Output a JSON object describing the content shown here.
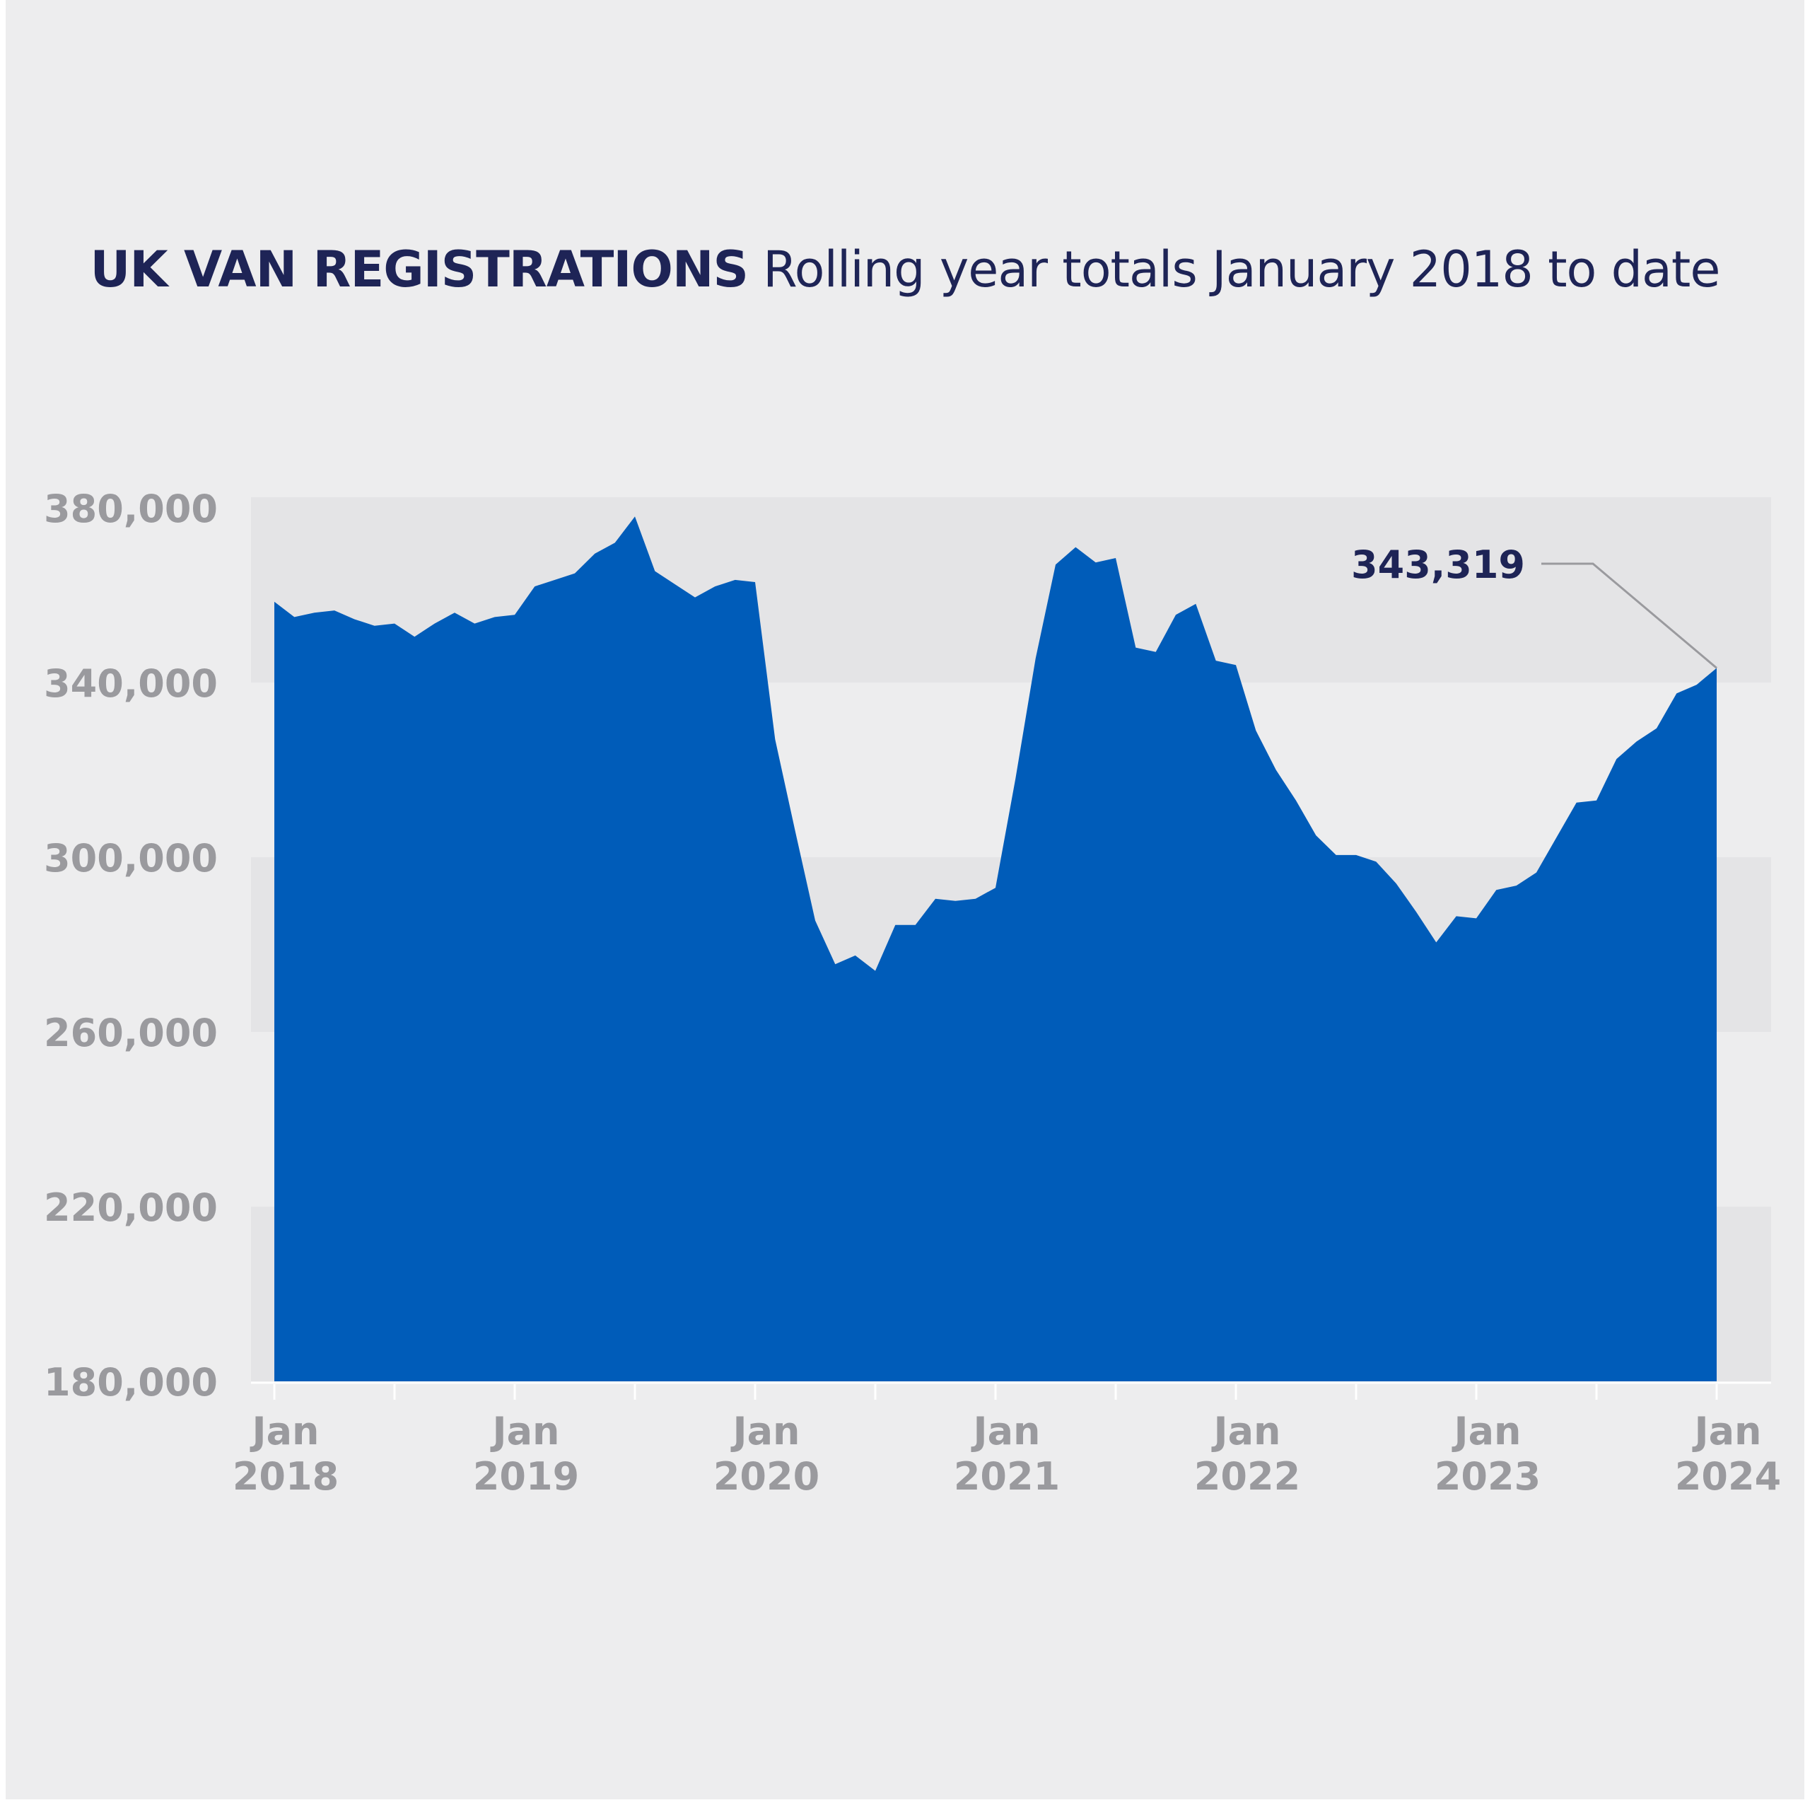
{
  "title": {
    "bold": "UK VAN REGISTRATIONS",
    "light": "Rolling year totals January 2018 to date"
  },
  "colors": {
    "background": "#ededee",
    "band": "#e4e4e6",
    "area": "#005cb9",
    "text_dark": "#1e2456",
    "axis_text": "#9a9a9e"
  },
  "chart_data": {
    "type": "area",
    "title": "UK VAN REGISTRATIONS Rolling year totals January 2018 to date",
    "xlabel": "",
    "ylabel": "",
    "ylim": [
      180000,
      380000
    ],
    "yticks": [
      {
        "value": 380000,
        "label": "380,000"
      },
      {
        "value": 340000,
        "label": "340,000"
      },
      {
        "value": 300000,
        "label": "300,000"
      },
      {
        "value": 260000,
        "label": "260,000"
      },
      {
        "value": 220000,
        "label": "220,000"
      },
      {
        "value": 180000,
        "label": "180,000"
      }
    ],
    "xticks": [
      {
        "label_top": "Jan",
        "label_bottom": "2018"
      },
      {
        "label_top": "Jan",
        "label_bottom": "2019"
      },
      {
        "label_top": "Jan",
        "label_bottom": "2020"
      },
      {
        "label_top": "Jan",
        "label_bottom": "2021"
      },
      {
        "label_top": "Jan",
        "label_bottom": "2022"
      },
      {
        "label_top": "Jan",
        "label_bottom": "2023"
      },
      {
        "label_top": "Jan",
        "label_bottom": "2024"
      }
    ],
    "grid": "alternating horizontal bands",
    "legend": "none",
    "series": [
      {
        "x": [
          "2018-01",
          "2018-02",
          "2018-03",
          "2018-04",
          "2018-05",
          "2018-06",
          "2018-07",
          "2018-08",
          "2018-09",
          "2018-10",
          "2018-11",
          "2018-12",
          "2019-01",
          "2019-02",
          "2019-03",
          "2019-04",
          "2019-05",
          "2019-06",
          "2019-07",
          "2019-08",
          "2019-09",
          "2019-10",
          "2019-11",
          "2019-12",
          "2020-01",
          "2020-02",
          "2020-03",
          "2020-04",
          "2020-05",
          "2020-06",
          "2020-07",
          "2020-08",
          "2020-09",
          "2020-10",
          "2020-11",
          "2020-12",
          "2021-01",
          "2021-02",
          "2021-03",
          "2021-04",
          "2021-05",
          "2021-06",
          "2021-07",
          "2021-08",
          "2021-09",
          "2021-10",
          "2021-11",
          "2021-12",
          "2022-01",
          "2022-02",
          "2022-03",
          "2022-04",
          "2022-05",
          "2022-06",
          "2022-07",
          "2022-08",
          "2022-09",
          "2022-10",
          "2022-11",
          "2022-12",
          "2023-01",
          "2023-02",
          "2023-03",
          "2023-04",
          "2023-05",
          "2023-06",
          "2023-07",
          "2023-08",
          "2023-09",
          "2023-10",
          "2023-11",
          "2023-12",
          "2024-01"
        ],
        "values": [
          358500,
          355000,
          356000,
          356500,
          354500,
          353000,
          353500,
          350500,
          353500,
          356000,
          353500,
          355000,
          355500,
          362000,
          363500,
          365000,
          369500,
          372000,
          378000,
          365500,
          362500,
          359500,
          362000,
          363500,
          363000,
          327000,
          306000,
          285500,
          275500,
          277500,
          274000,
          284500,
          284500,
          290500,
          290000,
          290500,
          293000,
          318000,
          345500,
          367000,
          371000,
          367500,
          368500,
          348000,
          347000,
          355500,
          358000,
          345000,
          344000,
          329000,
          320000,
          313000,
          305000,
          300500,
          300500,
          299000,
          294000,
          287500,
          280500,
          286500,
          286000,
          292500,
          293500,
          296500,
          304500,
          312500,
          313000,
          322500,
          326500,
          329500,
          337500,
          339500,
          343319
        ]
      }
    ],
    "annotations": [
      {
        "label": "343,319",
        "x": "2024-01",
        "value": 343319
      }
    ]
  }
}
